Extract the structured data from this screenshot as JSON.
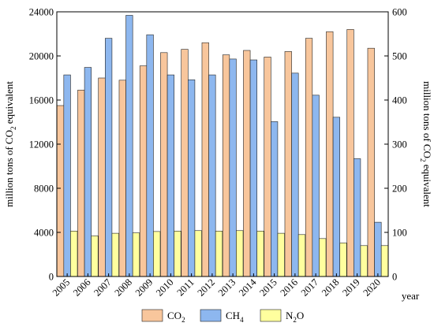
{
  "chart_data": {
    "type": "bar",
    "categories": [
      "2005",
      "2006",
      "2007",
      "2008",
      "2009",
      "2010",
      "2011",
      "2012",
      "2013",
      "2014",
      "2015",
      "2016",
      "2017",
      "2018",
      "2019",
      "2020"
    ],
    "series": [
      {
        "name": "CO2",
        "label_main": "CO",
        "label_sub": "2",
        "axis": "left",
        "color": "#f8c69c",
        "values": [
          15500,
          16900,
          18000,
          17800,
          19100,
          20300,
          20600,
          21200,
          20100,
          20500,
          19900,
          20400,
          21600,
          22200,
          22400,
          20700
        ]
      },
      {
        "name": "CH4",
        "label_main": "CH",
        "label_sub": "4",
        "axis": "right",
        "color": "#8db7ef",
        "values": [
          457,
          474,
          540,
          592,
          548,
          457,
          446,
          457,
          493,
          491,
          351,
          461,
          411,
          361,
          267,
          123
        ]
      },
      {
        "name": "N2O",
        "label_main": "N",
        "label_sub": "2",
        "label_tail": "O",
        "axis": "right",
        "color": "#ffff9e",
        "values": [
          103,
          92,
          98,
          99,
          102,
          103,
          104,
          103,
          104,
          103,
          98,
          95,
          86,
          76,
          70,
          70
        ]
      }
    ],
    "y_left": {
      "label_main": "million tons of CO",
      "label_sub": "2",
      "label_tail": " equivalent",
      "ticks": [
        "0",
        "4000",
        "8000",
        "12000",
        "16000",
        "20000",
        "24000"
      ],
      "ylim": [
        0,
        24000
      ]
    },
    "y_right": {
      "label_main": "million tons of CO",
      "label_sub": "2",
      "label_tail": " equivalent",
      "ticks": [
        "0",
        "100",
        "200",
        "300",
        "400",
        "500",
        "600"
      ],
      "ylim": [
        0,
        600
      ]
    },
    "xlabel": "year",
    "grid": false,
    "legend_position": "bottom"
  }
}
